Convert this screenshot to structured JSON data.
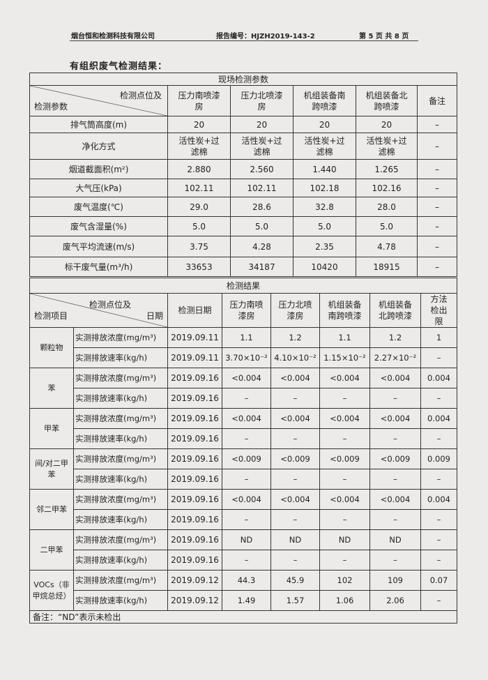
{
  "header": {
    "company": "烟台恒和检测科技有限公司",
    "report_no": "报告编号：HJZH2019-143-2",
    "page": "第 5 页 共 8 页"
  },
  "title": "有组织废气检测结果：",
  "site_params": {
    "section_title": "现场检测参数",
    "corner_top": "检测点位及",
    "corner_bottom": "检测参数",
    "columns": [
      "压力南喷漆房",
      "压力北喷漆房",
      "机组装备南跨喷漆",
      "机组装备北跨喷漆",
      "备注"
    ],
    "rows": [
      {
        "label": "排气筒高度(m)",
        "values": [
          "20",
          "20",
          "20",
          "20",
          "–"
        ]
      },
      {
        "label": "净化方式",
        "values": [
          "活性炭+过滤棉",
          "活性炭+过滤棉",
          "活性炭+过滤棉",
          "活性炭+过滤棉",
          "–"
        ]
      },
      {
        "label": "烟道截面积(m²)",
        "values": [
          "2.880",
          "2.560",
          "1.440",
          "1.265",
          "–"
        ]
      },
      {
        "label": "大气压(kPa)",
        "values": [
          "102.11",
          "102.11",
          "102.18",
          "102.16",
          "–"
        ]
      },
      {
        "label": "废气温度(℃)",
        "values": [
          "29.0",
          "28.6",
          "32.8",
          "28.0",
          "–"
        ]
      },
      {
        "label": "废气含湿量(%)",
        "values": [
          "5.0",
          "5.0",
          "5.0",
          "5.0",
          "–"
        ]
      },
      {
        "label": "废气平均流速(m/s)",
        "values": [
          "3.75",
          "4.28",
          "2.35",
          "4.78",
          "–"
        ]
      },
      {
        "label": "标干废气量(m³/h)",
        "values": [
          "33653",
          "34187",
          "10420",
          "18915",
          "–"
        ]
      }
    ]
  },
  "results": {
    "section_title": "检测结果",
    "corner_top": "检测点位及",
    "corner_right": "日期",
    "corner_bottom": "检测项目",
    "columns": [
      "检测日期",
      "压力南喷漆房",
      "压力北喷漆房",
      "机组装备南跨喷漆",
      "机组装备北跨喷漆",
      "方法检出限"
    ],
    "items": [
      {
        "name": "颗粒物",
        "rows": [
          {
            "param": "实测排放浓度(mg/m³)",
            "date": "2019.09.11",
            "values": [
              "1.1",
              "1.2",
              "1.1",
              "1.2",
              "1"
            ]
          },
          {
            "param": "实测排放速率(kg/h)",
            "date": "2019.09.11",
            "values": [
              "3.70×10⁻²",
              "4.10×10⁻²",
              "1.15×10⁻²",
              "2.27×10⁻²",
              "–"
            ]
          }
        ]
      },
      {
        "name": "苯",
        "rows": [
          {
            "param": "实测排放浓度(mg/m³)",
            "date": "2019.09.16",
            "values": [
              "<0.004",
              "<0.004",
              "<0.004",
              "<0.004",
              "0.004"
            ]
          },
          {
            "param": "实测排放速率(kg/h)",
            "date": "2019.09.16",
            "values": [
              "–",
              "–",
              "–",
              "–",
              "–"
            ]
          }
        ]
      },
      {
        "name": "甲苯",
        "rows": [
          {
            "param": "实测排放浓度(mg/m³)",
            "date": "2019.09.16",
            "values": [
              "<0.004",
              "<0.004",
              "<0.004",
              "<0.004",
              "0.004"
            ]
          },
          {
            "param": "实测排放速率(kg/h)",
            "date": "2019.09.16",
            "values": [
              "–",
              "–",
              "–",
              "–",
              "–"
            ]
          }
        ]
      },
      {
        "name": "间/对二甲苯",
        "rows": [
          {
            "param": "实测排放浓度(mg/m³)",
            "date": "2019.09.16",
            "values": [
              "<0.009",
              "<0.009",
              "<0.009",
              "<0.009",
              "0.009"
            ]
          },
          {
            "param": "实测排放速率(kg/h)",
            "date": "2019.09.16",
            "values": [
              "–",
              "–",
              "–",
              "–",
              "–"
            ]
          }
        ]
      },
      {
        "name": "邻二甲苯",
        "rows": [
          {
            "param": "实测排放浓度(mg/m³)",
            "date": "2019.09.16",
            "values": [
              "<0.004",
              "<0.004",
              "<0.004",
              "<0.004",
              "0.004"
            ]
          },
          {
            "param": "实测排放速率(kg/h)",
            "date": "2019.09.16",
            "values": [
              "–",
              "–",
              "–",
              "–",
              "–"
            ]
          }
        ]
      },
      {
        "name": "二甲苯",
        "rows": [
          {
            "param": "实测排放浓度(mg/m³)",
            "date": "2019.09.16",
            "values": [
              "ND",
              "ND",
              "ND",
              "ND",
              "–"
            ]
          },
          {
            "param": "实测排放速率(kg/h)",
            "date": "2019.09.16",
            "values": [
              "–",
              "–",
              "–",
              "–",
              "–"
            ]
          }
        ]
      },
      {
        "name": "VOCs（非甲烷总烃）",
        "rows": [
          {
            "param": "实测排放浓度(mg/m³)",
            "date": "2019.09.12",
            "values": [
              "44.3",
              "45.9",
              "102",
              "109",
              "0.07"
            ]
          },
          {
            "param": "实测排放速率(kg/h)",
            "date": "2019.09.12",
            "values": [
              "1.49",
              "1.57",
              "1.06",
              "2.06",
              "–"
            ]
          }
        ]
      }
    ],
    "note": "备注：“ND”表示未检出"
  }
}
